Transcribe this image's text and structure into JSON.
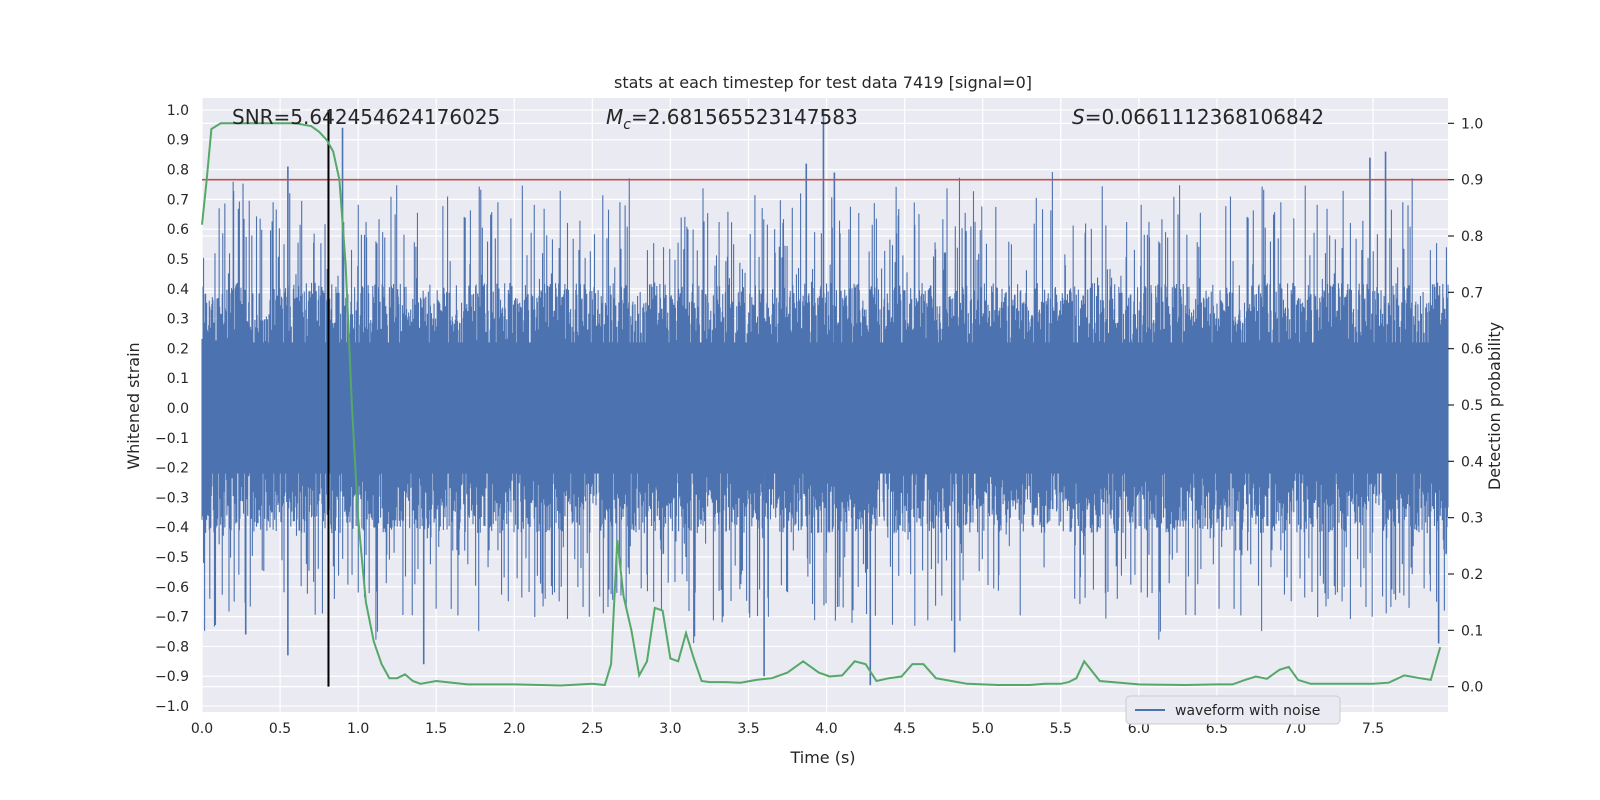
{
  "chart_data": {
    "type": "line",
    "title": "stats at each timestep for test data 7419 [signal=0]",
    "xlabel": "Time (s)",
    "ylabel": "Whitened strain",
    "y2label": "Detection probability",
    "xlim": [
      0.0,
      7.98
    ],
    "ylim": [
      -1.02,
      1.04
    ],
    "y2lim": [
      -0.045,
      1.045
    ],
    "xticks": [
      "0.0",
      "0.5",
      "1.0",
      "1.5",
      "2.0",
      "2.5",
      "3.0",
      "3.5",
      "4.0",
      "4.5",
      "5.0",
      "5.5",
      "6.0",
      "6.5",
      "7.0",
      "7.5"
    ],
    "yticks": [
      "1.0",
      "0.9",
      "0.8",
      "0.7",
      "0.6",
      "0.5",
      "0.4",
      "0.3",
      "0.2",
      "0.1",
      "0.0",
      "−0.1",
      "−0.2",
      "−0.3",
      "−0.4",
      "−0.5",
      "−0.6",
      "−0.7",
      "−0.8",
      "−0.9",
      "−1.0"
    ],
    "y2ticks": [
      "1.0",
      "0.9",
      "0.8",
      "0.7",
      "0.6",
      "0.5",
      "0.4",
      "0.3",
      "0.2",
      "0.1",
      "0.0"
    ],
    "grid": true,
    "legend_position": "lower-right",
    "annotations": {
      "snr": "SNR=5.642454624176025",
      "mc_symbol": "M",
      "mc_sub": "c",
      "mc_value": "=2.681565523147583",
      "s_symbol": "S",
      "s_value": "=0.0661112368106842"
    },
    "threshold_probability": 0.9,
    "marker_time": 0.81,
    "series": [
      {
        "name": "waveform with noise",
        "axis": "left",
        "color": "#4c72b0",
        "envelope_upper_typical": 0.42,
        "envelope_lower_typical": -0.42,
        "peaks": [
          {
            "t": 0.55,
            "v": 0.81
          },
          {
            "t": 0.9,
            "v": 0.94
          },
          {
            "t": 3.87,
            "v": 0.82
          },
          {
            "t": 3.98,
            "v": 1.0
          },
          {
            "t": 4.05,
            "v": 0.79
          },
          {
            "t": 7.48,
            "v": 0.84
          },
          {
            "t": 7.58,
            "v": 0.86
          },
          {
            "t": 0.28,
            "v": -0.76
          },
          {
            "t": 0.55,
            "v": -0.83
          },
          {
            "t": 1.42,
            "v": -0.86
          },
          {
            "t": 3.6,
            "v": -0.9
          },
          {
            "t": 4.28,
            "v": -0.93
          },
          {
            "t": 4.82,
            "v": -0.82
          },
          {
            "t": 7.92,
            "v": -0.79
          }
        ]
      },
      {
        "axis": "right",
        "color": "#55a868",
        "x": [
          0.0,
          0.03,
          0.06,
          0.12,
          0.2,
          0.4,
          0.6,
          0.7,
          0.75,
          0.8,
          0.84,
          0.88,
          0.92,
          0.96,
          1.0,
          1.05,
          1.1,
          1.15,
          1.2,
          1.25,
          1.3,
          1.35,
          1.4,
          1.5,
          1.7,
          2.0,
          2.3,
          2.5,
          2.58,
          2.62,
          2.66,
          2.7,
          2.75,
          2.8,
          2.85,
          2.9,
          2.95,
          3.0,
          3.05,
          3.1,
          3.15,
          3.2,
          3.25,
          3.3,
          3.35,
          3.45,
          3.55,
          3.65,
          3.75,
          3.85,
          3.95,
          4.02,
          4.1,
          4.18,
          4.25,
          4.32,
          4.4,
          4.48,
          4.55,
          4.62,
          4.7,
          4.8,
          4.9,
          5.1,
          5.3,
          5.4,
          5.5,
          5.55,
          5.6,
          5.65,
          5.75,
          6.0,
          6.3,
          6.5,
          6.6,
          6.68,
          6.75,
          6.82,
          6.9,
          6.96,
          7.02,
          7.1,
          7.5,
          7.6,
          7.7,
          7.8,
          7.87,
          7.93
        ],
        "values": [
          0.82,
          0.9,
          0.99,
          1.0,
          1.0,
          1.0,
          1.0,
          0.995,
          0.985,
          0.97,
          0.95,
          0.9,
          0.75,
          0.5,
          0.3,
          0.15,
          0.08,
          0.04,
          0.015,
          0.015,
          0.022,
          0.01,
          0.005,
          0.01,
          0.004,
          0.004,
          0.002,
          0.005,
          0.003,
          0.04,
          0.26,
          0.16,
          0.1,
          0.02,
          0.045,
          0.14,
          0.135,
          0.05,
          0.045,
          0.095,
          0.05,
          0.01,
          0.008,
          0.008,
          0.008,
          0.007,
          0.012,
          0.015,
          0.025,
          0.045,
          0.025,
          0.018,
          0.02,
          0.045,
          0.04,
          0.01,
          0.015,
          0.018,
          0.04,
          0.04,
          0.015,
          0.01,
          0.005,
          0.003,
          0.003,
          0.005,
          0.005,
          0.008,
          0.015,
          0.045,
          0.01,
          0.004,
          0.003,
          0.004,
          0.004,
          0.012,
          0.018,
          0.014,
          0.03,
          0.035,
          0.012,
          0.005,
          0.005,
          0.007,
          0.02,
          0.015,
          0.012,
          0.07
        ]
      }
    ]
  }
}
